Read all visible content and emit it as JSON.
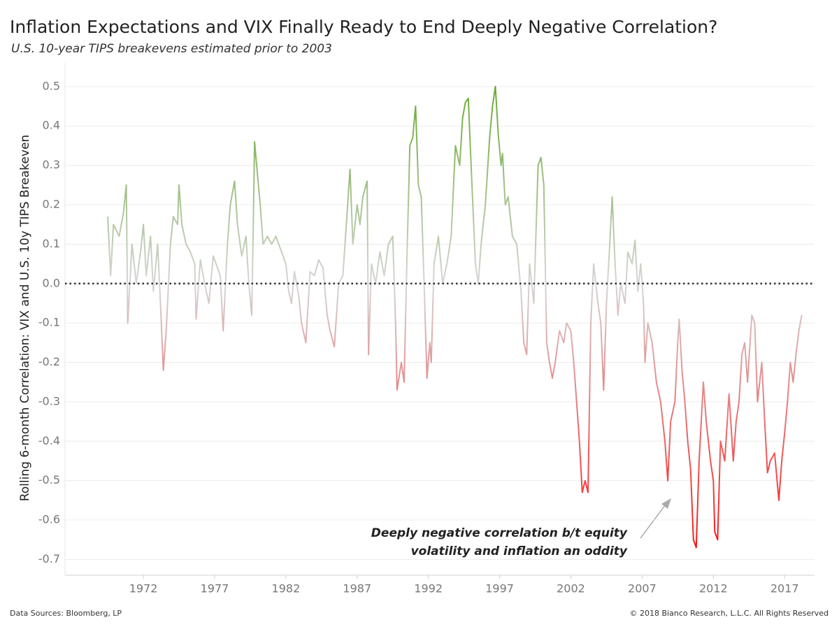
{
  "chart_data": {
    "type": "line",
    "title": "Inflation Expectations and VIX Finally Ready to End Deeply Negative Correlation?",
    "subtitle": "U.S. 10-year TIPS breakevens estimated prior to 2003",
    "y_label": "Rolling 6-month Correlation: VIX and U.S. 10y TIPS Breakeven",
    "annotations": [
      "Deeply negative correlation b/t equity",
      "volatility and inflation an oddity"
    ],
    "source": "Data Sources: Bloomberg, LP",
    "copyright": "© 2018 Bianco Research, L.L.C. All Rights Reserved",
    "colors": {
      "positive": "#5aa51e",
      "zero": "#d6d6d6",
      "negative": "#ff0000"
    },
    "zero_line": true,
    "grid": true,
    "xlim": [
      1966.5,
      2019.1
    ],
    "xticks": [
      1972,
      1977,
      1982,
      1987,
      1992,
      1997,
      2002,
      2007,
      2012,
      2017
    ],
    "ylim": [
      -0.74,
      0.56
    ],
    "yticks": [
      0.5,
      0.4,
      0.3,
      0.2,
      0.1,
      {
        "value": 0,
        "label": "0.0"
      },
      -0.1,
      -0.2,
      -0.3,
      -0.4,
      -0.5,
      -0.6,
      -0.7
    ],
    "x": [
      1969.5,
      1969.7,
      1969.9,
      1970.3,
      1970.6,
      1970.8,
      1970.9,
      1971.2,
      1971.5,
      1971.8,
      1972.0,
      1972.2,
      1972.5,
      1972.7,
      1973.0,
      1973.2,
      1973.4,
      1973.6,
      1973.9,
      1974.1,
      1974.4,
      1974.5,
      1974.7,
      1975.0,
      1975.3,
      1975.6,
      1975.7,
      1976.0,
      1976.3,
      1976.6,
      1976.9,
      1977.1,
      1977.4,
      1977.6,
      1977.9,
      1978.1,
      1978.4,
      1978.6,
      1978.9,
      1979.2,
      1979.4,
      1979.6,
      1979.7,
      1979.8,
      1980.0,
      1980.2,
      1980.4,
      1980.7,
      1981.0,
      1981.3,
      1981.7,
      1982.0,
      1982.2,
      1982.4,
      1982.6,
      1982.9,
      1983.1,
      1983.4,
      1983.7,
      1984.0,
      1984.3,
      1984.6,
      1984.9,
      1985.1,
      1985.4,
      1985.7,
      1986.0,
      1986.3,
      1986.5,
      1986.7,
      1987.0,
      1987.2,
      1987.4,
      1987.7,
      1987.8,
      1988.0,
      1988.3,
      1988.6,
      1988.9,
      1989.2,
      1989.5,
      1989.7,
      1989.8,
      1990.1,
      1990.3,
      1990.5,
      1990.7,
      1990.9,
      1991.1,
      1991.3,
      1991.5,
      1991.7,
      1991.9,
      1992.1,
      1992.2,
      1992.4,
      1992.7,
      1993.0,
      1993.3,
      1993.6,
      1993.9,
      1994.2,
      1994.4,
      1994.6,
      1994.8,
      1995.0,
      1995.3,
      1995.5,
      1995.7,
      1996.0,
      1996.3,
      1996.5,
      1996.7,
      1996.9,
      1997.1,
      1997.2,
      1997.4,
      1997.6,
      1997.9,
      1998.2,
      1998.5,
      1998.7,
      1998.9,
      1999.1,
      1999.4,
      1999.7,
      1999.9,
      2000.1,
      2000.3,
      2000.5,
      2000.7,
      2000.9,
      2001.2,
      2001.5,
      2001.7,
      2002.0,
      2002.2,
      2002.4,
      2002.6,
      2002.8,
      2003.0,
      2003.2,
      2003.4,
      2003.6,
      2003.9,
      2004.1,
      2004.3,
      2004.5,
      2004.7,
      2004.9,
      2005.1,
      2005.3,
      2005.5,
      2005.8,
      2006.0,
      2006.3,
      2006.5,
      2006.7,
      2006.9,
      2007.1,
      2007.2,
      2007.4,
      2007.7,
      2008.0,
      2008.3,
      2008.6,
      2008.8,
      2009.0,
      2009.3,
      2009.5,
      2009.6,
      2009.8,
      2010.0,
      2010.2,
      2010.4,
      2010.6,
      2010.8,
      2011.0,
      2011.3,
      2011.5,
      2011.8,
      2012.0,
      2012.1,
      2012.3,
      2012.5,
      2012.8,
      2013.1,
      2013.4,
      2013.6,
      2013.8,
      2014.0,
      2014.2,
      2014.4,
      2014.7,
      2014.9,
      2015.1,
      2015.4,
      2015.6,
      2015.8,
      2016.0,
      2016.3,
      2016.6,
      2016.8,
      2017.0,
      2017.2,
      2017.4,
      2017.6,
      2017.8,
      2018.0,
      2018.2
    ],
    "values": [
      0.17,
      0.02,
      0.15,
      0.12,
      0.18,
      0.25,
      -0.1,
      0.1,
      0.0,
      0.08,
      0.15,
      0.02,
      0.12,
      -0.02,
      0.1,
      -0.05,
      -0.22,
      -0.12,
      0.1,
      0.17,
      0.15,
      0.25,
      0.15,
      0.1,
      0.08,
      0.05,
      -0.09,
      0.06,
      0.0,
      -0.05,
      0.07,
      0.05,
      0.02,
      -0.12,
      0.1,
      0.2,
      0.26,
      0.15,
      0.07,
      0.12,
      0.0,
      -0.08,
      0.12,
      0.36,
      0.28,
      0.2,
      0.1,
      0.12,
      0.1,
      0.12,
      0.08,
      0.05,
      -0.02,
      -0.05,
      0.03,
      -0.03,
      -0.1,
      -0.15,
      0.03,
      0.02,
      0.06,
      0.04,
      -0.08,
      -0.12,
      -0.16,
      0.0,
      0.02,
      0.18,
      0.29,
      0.1,
      0.2,
      0.15,
      0.22,
      0.26,
      -0.18,
      0.05,
      0.0,
      0.08,
      0.02,
      0.1,
      0.12,
      -0.1,
      -0.27,
      -0.2,
      -0.25,
      0.07,
      0.35,
      0.37,
      0.45,
      0.25,
      0.22,
      0.0,
      -0.24,
      -0.15,
      -0.2,
      0.05,
      0.12,
      0.0,
      0.05,
      0.12,
      0.35,
      0.3,
      0.42,
      0.46,
      0.47,
      0.3,
      0.05,
      0.0,
      0.1,
      0.2,
      0.37,
      0.45,
      0.5,
      0.38,
      0.3,
      0.33,
      0.2,
      0.22,
      0.12,
      0.1,
      -0.02,
      -0.15,
      -0.18,
      0.05,
      -0.05,
      0.3,
      0.32,
      0.25,
      -0.15,
      -0.2,
      -0.24,
      -0.2,
      -0.12,
      -0.15,
      -0.1,
      -0.12,
      -0.2,
      -0.3,
      -0.4,
      -0.53,
      -0.5,
      -0.53,
      -0.1,
      0.05,
      -0.05,
      -0.1,
      -0.27,
      -0.05,
      0.08,
      0.22,
      0.05,
      -0.08,
      0.0,
      -0.05,
      0.08,
      0.05,
      0.11,
      -0.02,
      0.05,
      -0.05,
      -0.2,
      -0.1,
      -0.15,
      -0.25,
      -0.3,
      -0.4,
      -0.5,
      -0.35,
      -0.3,
      -0.15,
      -0.09,
      -0.22,
      -0.3,
      -0.4,
      -0.47,
      -0.65,
      -0.67,
      -0.45,
      -0.25,
      -0.35,
      -0.45,
      -0.5,
      -0.63,
      -0.65,
      -0.4,
      -0.45,
      -0.28,
      -0.45,
      -0.35,
      -0.3,
      -0.18,
      -0.15,
      -0.25,
      -0.08,
      -0.1,
      -0.3,
      -0.2,
      -0.35,
      -0.48,
      -0.45,
      -0.43,
      -0.55,
      -0.45,
      -0.38,
      -0.3,
      -0.2,
      -0.25,
      -0.18,
      -0.12,
      -0.08
    ]
  }
}
